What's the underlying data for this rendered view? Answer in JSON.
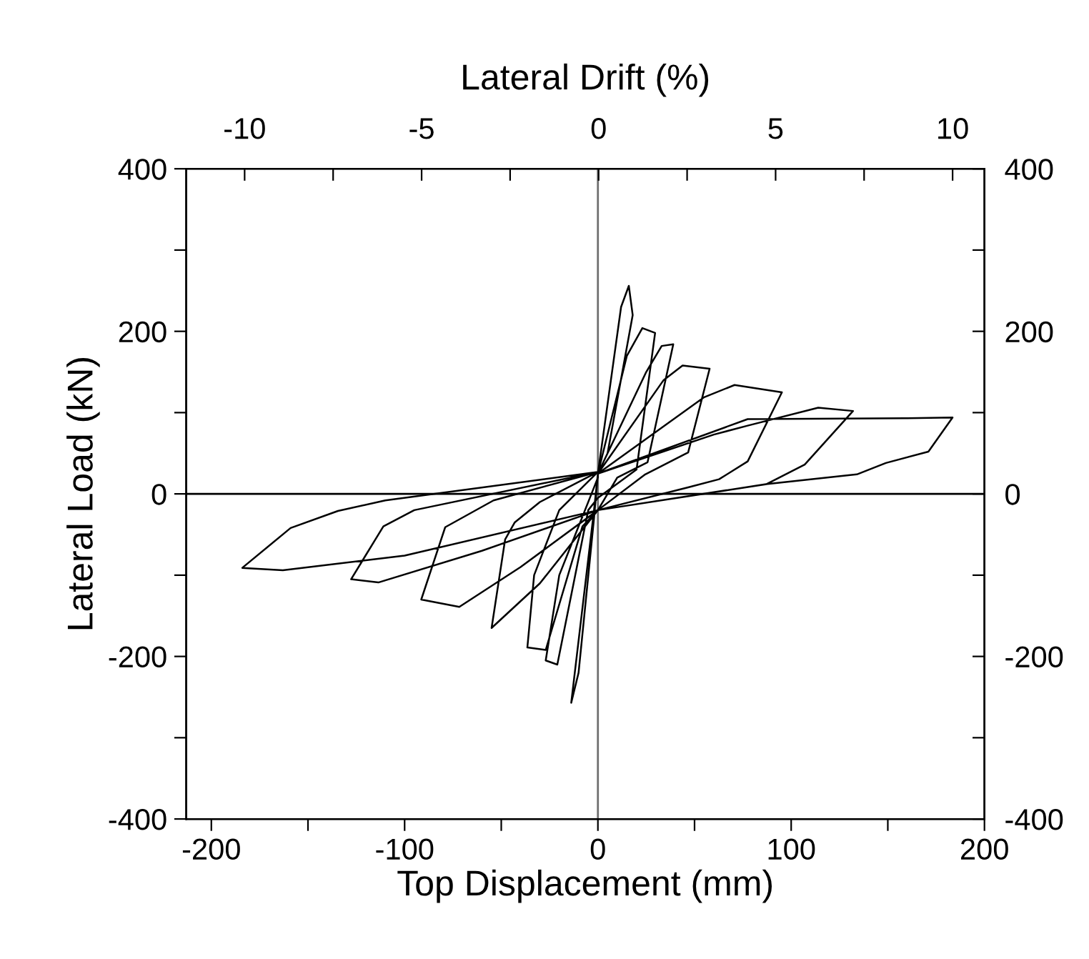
{
  "chart_data": {
    "type": "line",
    "xlabel": "Top Displacement (mm)",
    "ylabel": "Lateral Load (kN)",
    "x2label": "Lateral Drift (%)",
    "xlim": [
      -213,
      200
    ],
    "xticks": [
      -200,
      {
        "value": -150,
        "label": null
      },
      -100,
      {
        "value": -50,
        "label": null
      },
      0,
      {
        "value": 50,
        "label": null
      },
      100,
      {
        "value": 150,
        "label": null
      },
      200
    ],
    "x2lim": [
      -11.65,
      10.9
    ],
    "x2ticks": [
      -10,
      {
        "value": -7.5,
        "label": null
      },
      -5,
      {
        "value": -2.5,
        "label": null
      },
      0,
      {
        "value": 2.5,
        "label": null
      },
      5,
      {
        "value": 7.5,
        "label": null
      },
      10
    ],
    "ylim": [
      -400,
      400
    ],
    "yticks": [
      -400,
      {
        "value": -300,
        "label": null
      },
      -200,
      {
        "value": -100,
        "label": null
      },
      0,
      {
        "value": 100,
        "label": null
      },
      200,
      {
        "value": 300,
        "label": null
      },
      400
    ],
    "y2lim": [
      -400,
      400
    ],
    "y2ticks": [
      -400,
      {
        "value": -300,
        "label": null
      },
      -200,
      {
        "value": -100,
        "label": null
      },
      0,
      {
        "value": 100,
        "label": null
      },
      200,
      {
        "value": 300,
        "label": null
      },
      400
    ],
    "ref_lines": [
      {
        "axis": "x",
        "value": 0,
        "color": "#707070"
      },
      {
        "axis": "y",
        "value": 0,
        "color": "#000000"
      }
    ],
    "grid": false,
    "marker": "none",
    "line_style": "solid",
    "series": [
      {
        "color": "#000000",
        "x": [
          0,
          12,
          16,
          18,
          5,
          0,
          -2,
          -13.8,
          -10,
          -2,
          0,
          15,
          23,
          29.6,
          20,
          0,
          -5,
          -21,
          -27,
          -20,
          0,
          0,
          25,
          33,
          39,
          25.7,
          10,
          0,
          -8,
          -27,
          -36.5,
          -33,
          -20,
          0,
          0,
          34,
          43.8,
          57.8,
          46.7,
          24.5,
          0,
          -30,
          -55,
          -48,
          -43,
          -30,
          0,
          0,
          55,
          70.7,
          95.2,
          77.5,
          62.7,
          46.7,
          0,
          -40,
          -71.7,
          -91.4,
          -79,
          -54,
          0,
          0,
          60,
          77.5,
          114,
          132,
          107,
          87.3,
          0,
          -60,
          -113.6,
          -127.7,
          -111,
          -95,
          0,
          0,
          77.5,
          159,
          183.5,
          171,
          149,
          134,
          87,
          0,
          -100,
          -163,
          -184,
          -159,
          -134.5,
          -110,
          0
        ],
        "values": [
          25,
          230,
          256,
          220,
          50,
          25,
          -20,
          -257,
          -220,
          -30,
          25,
          170,
          204,
          198,
          30,
          -5,
          -20,
          -210,
          -205,
          -100,
          20,
          25,
          150,
          182,
          184,
          39,
          20,
          -20,
          -40,
          -192,
          -189,
          -100,
          -20,
          27,
          25,
          140,
          158,
          154,
          51,
          24,
          -20,
          -110,
          -165,
          -56,
          -35,
          -10,
          27,
          25,
          119,
          134,
          125,
          40,
          18,
          8,
          -20,
          -90,
          -139,
          -130,
          -41,
          -8,
          27,
          25,
          73,
          84,
          106,
          102,
          36,
          12,
          -20,
          -70,
          -109,
          -105,
          -40,
          -20,
          27,
          25,
          92,
          93,
          94,
          52,
          38,
          24,
          12,
          -20,
          -76,
          -94,
          -91,
          -42,
          -21,
          -8,
          27
        ]
      }
    ]
  }
}
